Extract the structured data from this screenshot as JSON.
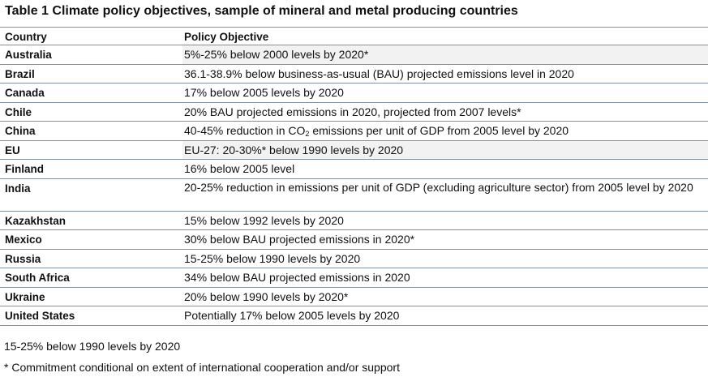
{
  "title": "Table 1 Climate policy objectives, sample of mineral and metal producing countries",
  "columns": {
    "country": "Country",
    "objective": "Policy Objective"
  },
  "rows": [
    {
      "country": "Australia",
      "objective": "5%-25% below 2000 levels by 2020*"
    },
    {
      "country": "Brazil",
      "objective": "36.1-38.9% below business-as-usual (BAU)  projected emissions level in 2020"
    },
    {
      "country": "Canada",
      "objective": "17% below 2005 levels by 2020"
    },
    {
      "country": "Chile",
      "objective": "20% BAU projected emissions in 2020, projected from 2007 levels*"
    },
    {
      "country": "China",
      "objective_pre": "40-45% reduction in CO",
      "objective_sub": "2",
      "objective_post": " emissions per unit of GDP from 2005 level by 2020"
    },
    {
      "country": "EU",
      "objective": "EU-27: 20-30%* below 1990 levels by 2020"
    },
    {
      "country": "Finland",
      "objective": "16% below 2005 level"
    },
    {
      "country": "India",
      "objective": "20-25% reduction in emissions per unit of GDP (excluding agriculture sector) from 2005 level by 2020"
    },
    {
      "country": "Kazakhstan",
      "objective": "15% below 1992 levels by 2020"
    },
    {
      "country": "Mexico",
      "objective": "30% below BAU  projected emissions in 2020*"
    },
    {
      "country": "Russia",
      "objective": "15-25% below 1990 levels by 2020"
    },
    {
      "country": "South Africa",
      "objective": "34% below BAU projected emissions in 2020"
    },
    {
      "country": "Ukraine",
      "objective": "20% below 1990 levels by 2020*"
    },
    {
      "country": "United States",
      "objective": "Potentially 17% below 2005 levels by 2020"
    }
  ],
  "notes": {
    "line1": "15-25% below 1990 levels by 2020",
    "line2": "* Commitment conditional on extent of international cooperation and/or support"
  }
}
